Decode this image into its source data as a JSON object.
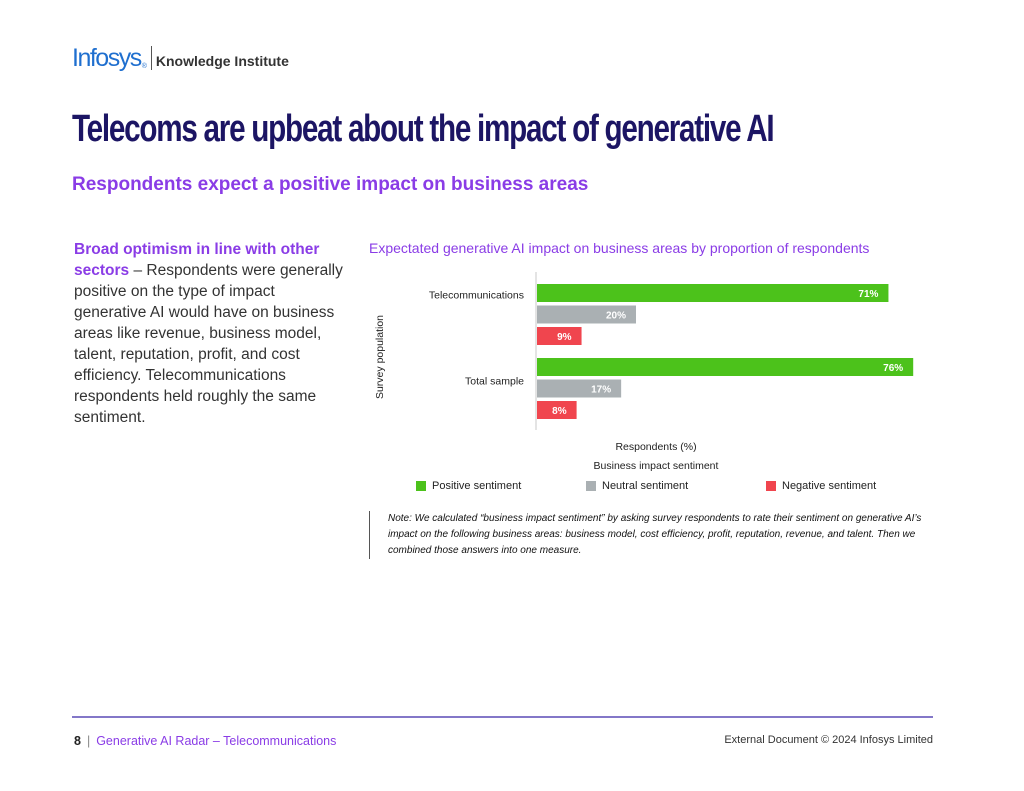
{
  "header": {
    "brand": "Infosys",
    "brand_mark": "®",
    "sub_brand": "Knowledge Institute",
    "title": "Telecoms are upbeat about the impact of generative AI",
    "subtitle": "Respondents expect a positive impact on business areas"
  },
  "body": {
    "lead": "Broad optimism in line with other sectors",
    "text": " – Respondents were generally positive on the type of impact generative AI would have on business areas like revenue, business model, talent, reputation, profit, and cost efficiency. Telecommunications respondents held roughly the same sentiment."
  },
  "chart_data": {
    "type": "bar",
    "orientation": "horizontal",
    "title": "Expectated generative AI impact on business areas by proportion of respondents",
    "ylabel": "Survey population",
    "xlabel": "Respondents (%)",
    "legend_title": "Business impact sentiment",
    "categories": [
      "Telecommunications",
      "Total sample"
    ],
    "xlim": [
      0,
      100
    ],
    "grid": false,
    "legend_position": "bottom",
    "series": [
      {
        "name": "Positive sentiment",
        "color": "#4cc21b",
        "values": [
          71,
          76
        ]
      },
      {
        "name": "Neutral sentiment",
        "color": "#aab0b3",
        "values": [
          20,
          17
        ]
      },
      {
        "name": "Negative  sentiment",
        "color": "#f0454e",
        "values": [
          9,
          8
        ]
      }
    ]
  },
  "note": "Note: We calculated “business impact sentiment” by asking survey respondents to rate their sentiment on generative AI’s impact on the following business areas: business model, cost efficiency, profit, reputation, revenue, and talent. Then we combined those answers into one measure.",
  "footer": {
    "page_number": "8",
    "separator": "|",
    "document_title": "Generative AI Radar – Telecommunications",
    "copyright": "External Document © 2024 Infosys Limited"
  }
}
